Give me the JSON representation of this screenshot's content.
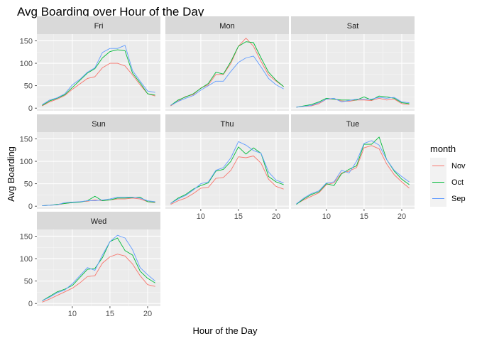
{
  "chart_data": {
    "type": "line",
    "title": "Avg Boarding over Hour of the Day",
    "xlabel": "Hour of the Day",
    "ylabel": "Avg Boarding",
    "xlim": [
      5.3,
      21.7
    ],
    "ylim": [
      -6,
      165
    ],
    "x_ticks": [
      10,
      15,
      20
    ],
    "y_ticks": [
      0,
      50,
      100,
      150
    ],
    "legend": {
      "title": "month",
      "position": "right"
    },
    "series_meta": [
      {
        "name": "Nov",
        "color": "#F8766D"
      },
      {
        "name": "Oct",
        "color": "#00BA38"
      },
      {
        "name": "Sep",
        "color": "#619CFF"
      }
    ],
    "x": [
      6,
      7,
      8,
      9,
      10,
      11,
      12,
      13,
      14,
      15,
      16,
      17,
      18,
      19,
      20,
      21
    ],
    "panels": [
      {
        "label": "Fri",
        "series": [
          {
            "name": "Nov",
            "values": [
              5,
              14,
              20,
              28,
              42,
              54,
              66,
              70,
              90,
              100,
              100,
              94,
              74,
              52,
              32,
              27
            ]
          },
          {
            "name": "Oct",
            "values": [
              6,
              16,
              22,
              30,
              46,
              62,
              78,
              88,
              112,
              126,
              130,
              128,
              78,
              56,
              32,
              29
            ]
          },
          {
            "name": "Sep",
            "values": [
              8,
              18,
              23,
              32,
              52,
              64,
              80,
              90,
              124,
              133,
              133,
              140,
              84,
              60,
              38,
              35
            ]
          }
        ]
      },
      {
        "label": "Mon",
        "series": [
          {
            "name": "Nov",
            "values": [
              5,
              16,
              26,
              30,
              45,
              52,
              75,
              75,
              100,
              138,
              156,
              138,
              104,
              74,
              60,
              48
            ]
          },
          {
            "name": "Oct",
            "values": [
              6,
              18,
              25,
              32,
              44,
              55,
              80,
              76,
              104,
              138,
              148,
              146,
              112,
              80,
              62,
              48
            ]
          },
          {
            "name": "Sep",
            "values": [
              6,
              15,
              22,
              28,
              40,
              50,
              60,
              60,
              82,
              102,
              112,
              116,
              92,
              66,
              52,
              43
            ]
          }
        ]
      },
      {
        "label": "Sat",
        "series": [
          {
            "name": "Nov",
            "values": [
              2,
              4,
              5,
              10,
              20,
              20,
              16,
              15,
              18,
              18,
              17,
              22,
              18,
              20,
              10,
              8
            ]
          },
          {
            "name": "Oct",
            "values": [
              2,
              5,
              8,
              14,
              22,
              20,
              18,
              18,
              18,
              25,
              18,
              27,
              25,
              22,
              12,
              10
            ]
          },
          {
            "name": "Sep",
            "values": [
              2,
              4,
              6,
              12,
              20,
              22,
              14,
              17,
              20,
              20,
              20,
              24,
              22,
              24,
              14,
              12
            ]
          }
        ]
      },
      {
        "label": "Sun",
        "series": [
          {
            "name": "Nov",
            "values": [
              1,
              2,
              3,
              6,
              8,
              10,
              11,
              14,
              12,
              14,
              16,
              16,
              18,
              16,
              10,
              8
            ]
          },
          {
            "name": "Oct",
            "values": [
              1,
              2,
              4,
              6,
              8,
              9,
              12,
              22,
              12,
              14,
              18,
              18,
              19,
              20,
              10,
              9
            ]
          },
          {
            "name": "Sep",
            "values": [
              1,
              2,
              3,
              8,
              9,
              10,
              12,
              12,
              14,
              16,
              20,
              20,
              20,
              18,
              12,
              10
            ]
          }
        ]
      },
      {
        "label": "Thu",
        "series": [
          {
            "name": "Nov",
            "values": [
              4,
              12,
              18,
              28,
              40,
              42,
              62,
              64,
              80,
              110,
              108,
              112,
              96,
              60,
              44,
              38
            ]
          },
          {
            "name": "Oct",
            "values": [
              6,
              18,
              26,
              38,
              46,
              52,
              78,
              82,
              100,
              132,
              116,
              130,
              118,
              66,
              54,
              48
            ]
          },
          {
            "name": "Sep",
            "values": [
              6,
              16,
              24,
              36,
              50,
              54,
              80,
              86,
              108,
              144,
              136,
              124,
              118,
              76,
              58,
              52
            ]
          }
        ]
      },
      {
        "label": "Tue",
        "series": [
          {
            "name": "Nov",
            "values": [
              5,
              14,
              22,
              30,
              48,
              52,
              74,
              78,
              86,
              130,
              135,
              128,
              94,
              70,
              54,
              40
            ]
          },
          {
            "name": "Oct",
            "values": [
              4,
              16,
              26,
              32,
              50,
              46,
              72,
              82,
              90,
              138,
              138,
              154,
              104,
              78,
              60,
              48
            ]
          },
          {
            "name": "Sep",
            "values": [
              5,
              18,
              28,
              34,
              52,
              54,
              80,
              74,
              100,
              140,
              146,
              136,
              104,
              80,
              66,
              54
            ]
          }
        ]
      },
      {
        "label": "Wed",
        "series": [
          {
            "name": "Nov",
            "values": [
              3,
              10,
              18,
              26,
              34,
              46,
              60,
              62,
              90,
              104,
              110,
              106,
              88,
              62,
              42,
              38
            ]
          },
          {
            "name": "Oct",
            "values": [
              6,
              16,
              26,
              32,
              40,
              58,
              76,
              78,
              102,
              138,
              146,
              118,
              108,
              72,
              56,
              46
            ]
          },
          {
            "name": "Sep",
            "values": [
              6,
              14,
              24,
              30,
              44,
              62,
              80,
              74,
              108,
              138,
              152,
              146,
              120,
              80,
              64,
              50
            ]
          }
        ]
      }
    ]
  }
}
